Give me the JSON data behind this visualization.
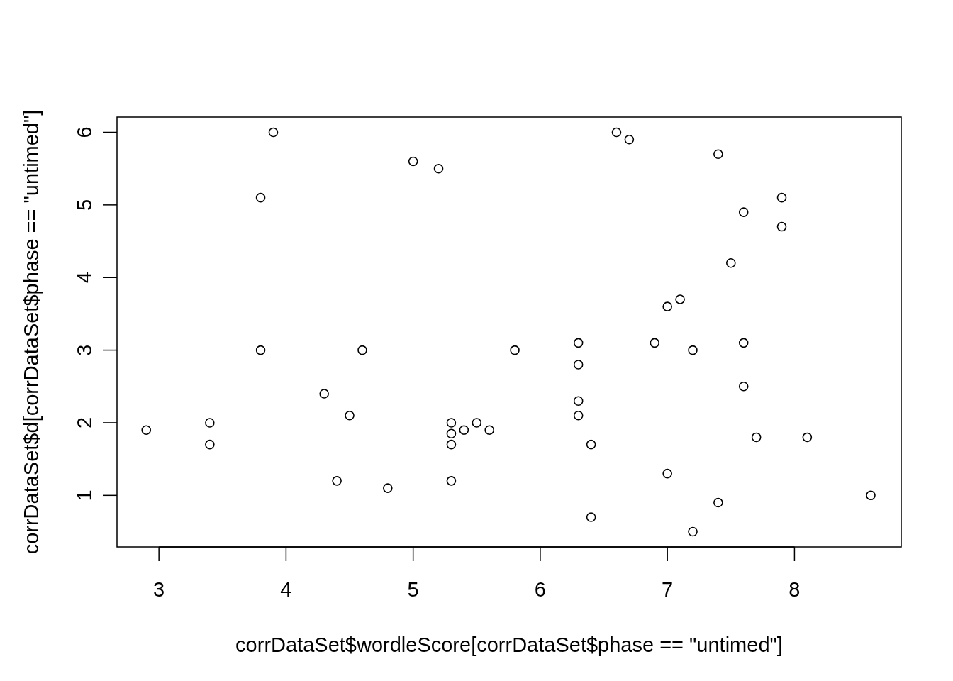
{
  "chart_data": {
    "type": "scatter",
    "xlabel": "corrDataSet$wordleScore[corrDataSet$phase == \"untimed\"]",
    "ylabel": "corrDataSet$d[corrDataSet$phase == \"untimed\"]",
    "xlim": [
      2.67,
      8.84
    ],
    "ylim": [
      0.29,
      6.21
    ],
    "xticks": [
      3,
      4,
      5,
      6,
      7,
      8
    ],
    "yticks": [
      1,
      2,
      3,
      4,
      5,
      6
    ],
    "marker": "circle",
    "series": [
      {
        "color": "#000000",
        "x": [
          2.9,
          3.4,
          3.4,
          3.8,
          3.9,
          3.8,
          4.3,
          4.5,
          4.4,
          4.6,
          4.8,
          5.0,
          5.2,
          5.3,
          5.3,
          5.4,
          5.3,
          5.3,
          5.5,
          5.6,
          5.8,
          6.3,
          6.3,
          6.3,
          6.3,
          6.4,
          6.4,
          6.6,
          6.7,
          6.9,
          7.0,
          7.1,
          7.2,
          7.0,
          7.2,
          7.4,
          7.4,
          7.5,
          7.6,
          7.6,
          7.6,
          7.7,
          7.9,
          7.9,
          8.1,
          8.6
        ],
        "values": [
          1.9,
          2.0,
          1.7,
          5.1,
          6.0,
          3.0,
          2.4,
          2.1,
          1.2,
          3.0,
          1.1,
          5.6,
          5.5,
          2.0,
          1.85,
          1.9,
          1.7,
          1.2,
          2.0,
          1.9,
          3.0,
          3.1,
          2.8,
          2.3,
          2.1,
          1.7,
          0.7,
          6.0,
          5.9,
          3.1,
          3.6,
          3.7,
          3.0,
          1.3,
          0.5,
          5.7,
          0.9,
          4.2,
          4.9,
          3.1,
          2.5,
          1.8,
          5.1,
          4.7,
          1.8,
          1.0
        ]
      }
    ]
  }
}
